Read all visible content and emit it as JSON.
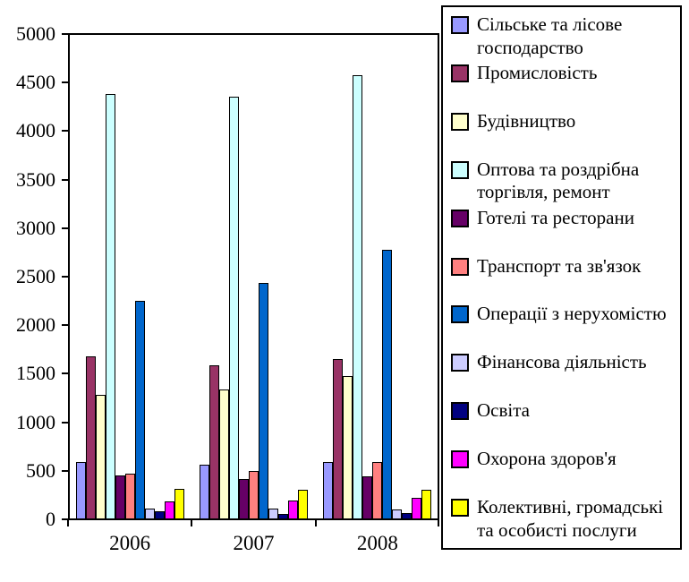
{
  "frame": {
    "border_color": "#FF00FF",
    "background": "#FFFFFF"
  },
  "chart_data": {
    "type": "bar",
    "title": "",
    "xlabel": "",
    "ylabel": "",
    "grid": false,
    "legend_position": "right",
    "categories": [
      "2006",
      "2007",
      "2008"
    ],
    "y_axis": {
      "min": 0,
      "max": 5000,
      "step": 500,
      "ticks": [
        0,
        500,
        1000,
        1500,
        2000,
        2500,
        3000,
        3500,
        4000,
        4500,
        5000
      ]
    },
    "series": [
      {
        "name": "Сільське та лісове господарство",
        "color": "#9999FF",
        "values": [
          570,
          540,
          570
        ]
      },
      {
        "name": "Промисловість",
        "color": "#993366",
        "values": [
          1660,
          1570,
          1630
        ]
      },
      {
        "name": "Будівництво",
        "color": "#FFFFCC",
        "values": [
          1260,
          1320,
          1460
        ]
      },
      {
        "name": "Оптова та роздрібна торгівля, ремонт",
        "color": "#CCFFFF",
        "values": [
          4360,
          4340,
          4560
        ]
      },
      {
        "name": "Готелі та ресторани",
        "color": "#660066",
        "values": [
          430,
          400,
          420
        ]
      },
      {
        "name": "Транспорт та зв'язок",
        "color": "#FF8080",
        "values": [
          450,
          480,
          570
        ]
      },
      {
        "name": "Операції з нерухомістю",
        "color": "#0066CC",
        "values": [
          2230,
          2420,
          2760
        ]
      },
      {
        "name": "Фінансова діяльність",
        "color": "#CCCCFF",
        "values": [
          90,
          90,
          85
        ]
      },
      {
        "name": "Освіта",
        "color": "#000080",
        "values": [
          60,
          40,
          45
        ]
      },
      {
        "name": "Охорона здоров'я",
        "color": "#FF00FF",
        "values": [
          165,
          175,
          200
        ]
      },
      {
        "name": "Колективні, громадські та особисті послуги",
        "color": "#FFFF00",
        "values": [
          295,
          285,
          290
        ]
      }
    ]
  }
}
